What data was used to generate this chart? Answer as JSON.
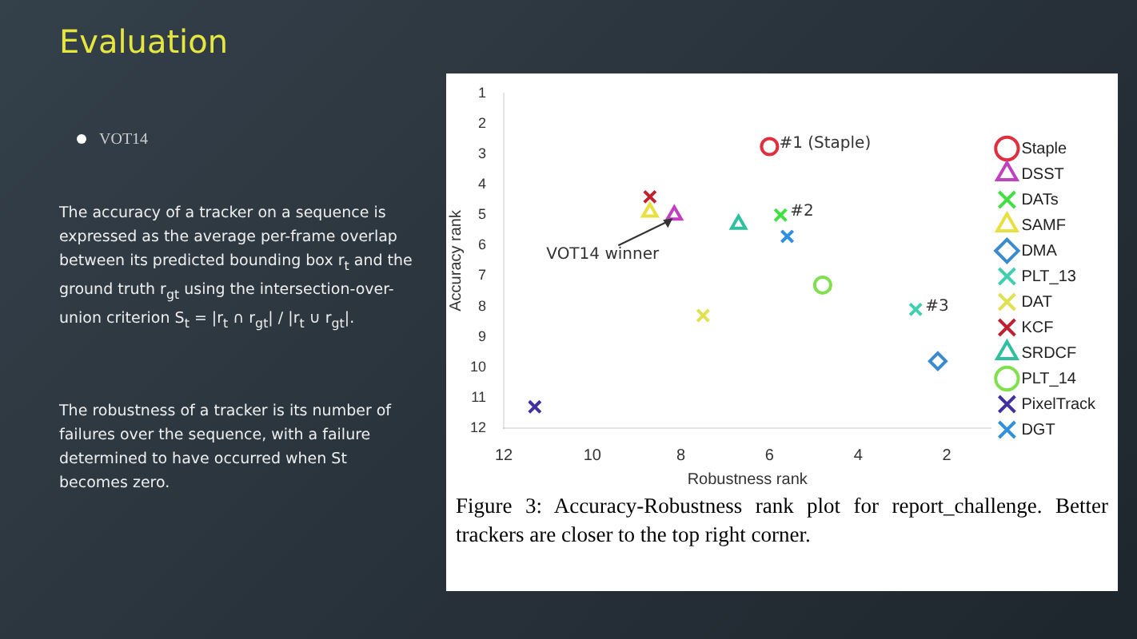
{
  "chart_data": {
    "type": "scatter",
    "title": "Evaluation",
    "subtitle": "VOT14",
    "xlabel": "Robustness rank",
    "ylabel": "Accuracy rank",
    "xlim": [
      12,
      1
    ],
    "xticks": [
      12,
      10,
      8,
      6,
      4,
      2
    ],
    "ylim": [
      12,
      1
    ],
    "yticks": [
      1,
      2,
      3,
      4,
      5,
      6,
      7,
      8,
      9,
      10,
      11,
      12
    ],
    "grid": false,
    "legend": "right",
    "series": [
      {
        "name": "Staple",
        "color": "#e03040",
        "marker": "circle",
        "x": [
          6.0
        ],
        "values": [
          2.75
        ]
      },
      {
        "name": "DSST",
        "color": "#c040c0",
        "marker": "triangle",
        "x": [
          8.15
        ],
        "values": [
          5.0
        ]
      },
      {
        "name": "DATs",
        "color": "#40e040",
        "marker": "cross",
        "x": [
          5.75
        ],
        "values": [
          5.0
        ]
      },
      {
        "name": "SAMF",
        "color": "#e8e040",
        "marker": "triangle",
        "x": [
          8.7
        ],
        "values": [
          4.9
        ]
      },
      {
        "name": "DMA",
        "color": "#3a8ad0",
        "marker": "diamond",
        "x": [
          2.2
        ],
        "values": [
          9.8
        ]
      },
      {
        "name": "PLT_13",
        "color": "#40d0b0",
        "marker": "cross",
        "x": [
          2.7
        ],
        "values": [
          8.1
        ]
      },
      {
        "name": "DAT",
        "color": "#e0e050",
        "marker": "cross",
        "x": [
          7.5
        ],
        "values": [
          8.3
        ]
      },
      {
        "name": "KCF",
        "color": "#c02030",
        "marker": "cross",
        "x": [
          8.7
        ],
        "values": [
          4.4
        ]
      },
      {
        "name": "SRDCF",
        "color": "#30c0a0",
        "marker": "triangle",
        "x": [
          6.7
        ],
        "values": [
          5.3
        ]
      },
      {
        "name": "PLT_14",
        "color": "#80e050",
        "marker": "circle",
        "x": [
          4.8
        ],
        "values": [
          7.3
        ]
      },
      {
        "name": "PixelTrack",
        "color": "#4030a0",
        "marker": "cross",
        "x": [
          11.3
        ],
        "values": [
          11.3
        ]
      },
      {
        "name": "DGT",
        "color": "#3090e0",
        "marker": "cross",
        "x": [
          5.6
        ],
        "values": [
          5.7
        ]
      }
    ],
    "annotations": [
      {
        "text": "#1 (Staple)",
        "x": 6.0,
        "y": 2.75
      },
      {
        "text": "#2",
        "x": 5.75,
        "y": 5.0
      },
      {
        "text": "#3",
        "x": 2.7,
        "y": 8.1
      },
      {
        "text": "VOT14 winner",
        "x": 8.15,
        "y": 5.0
      },
      "The accuracy of a tracker on a sequence is expressed as the average per-frame overlap between its predicted bounding box r$_{t}$ and the ground truth r$_{gt}$ using the intersection-over-union criterion S$_{t}$ = |r$_{t}$ ∩ r$_{gt}$| / |r$_{t}$ ∪ r$_{gt}$|.",
      "The robustness of a tracker is its number of failures over the sequence, with a failure determined to have occurred when St becomes zero.",
      "Figure 3: Accuracy-Robustness rank plot for report_challenge. Better trackers are closer to the top right corner."
    ]
  }
}
